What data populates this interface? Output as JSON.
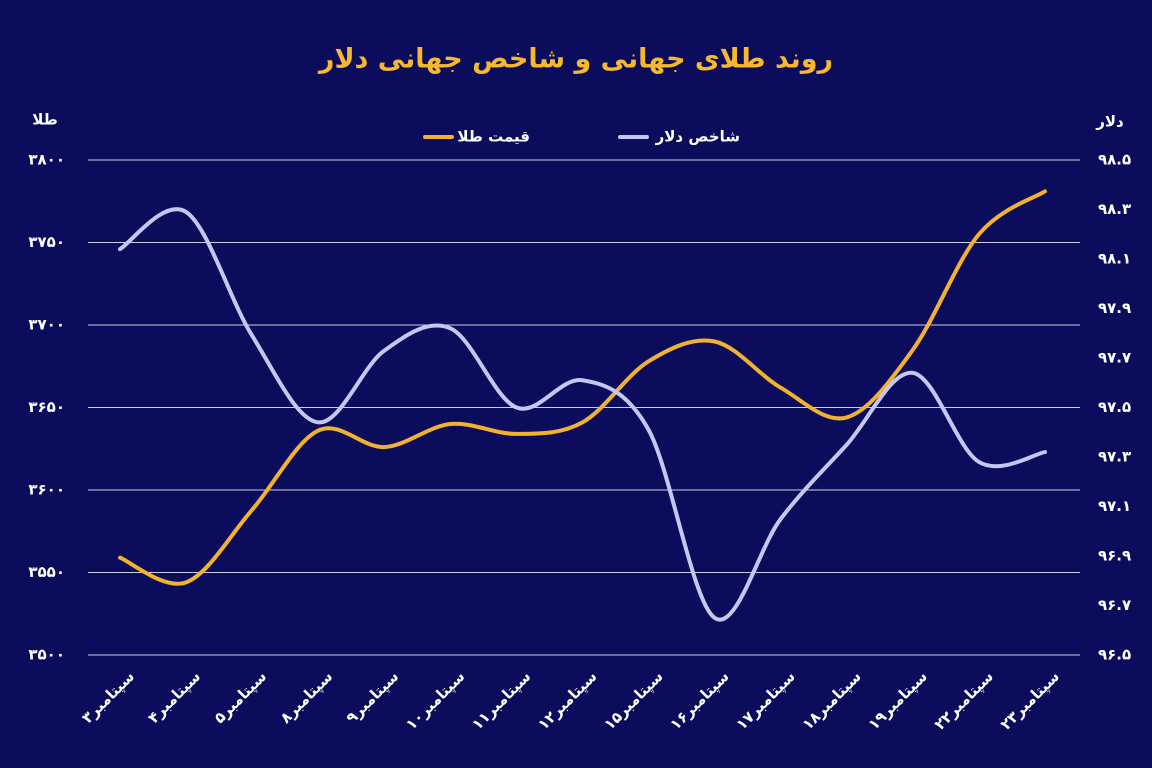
{
  "chart_data": {
    "type": "line",
    "title": "روند طلای جهانی و شاخص جهانی دلار",
    "ylabel": "طلا",
    "y2label": "دلار",
    "categories": [
      "۳سپتامبر",
      "۴سپتامبر",
      "۵سپتامبر",
      "۸سپتامبر",
      "۹سپتامبر",
      "۱۰سپتامبر",
      "۱۱سپتامبر",
      "۱۲سپتامبر",
      "۱۵سپتامبر",
      "۱۶سپتامبر",
      "۱۷سپتامبر",
      "۱۸سپتامبر",
      "۱۹سپتامبر",
      "۲۲سپتامبر",
      "۲۳سپتامبر"
    ],
    "series": [
      {
        "name": "قیمت طلا",
        "color": "#f2b230",
        "values": [
          3559,
          3544,
          3588,
          3636,
          3626,
          3640,
          3634,
          3641,
          3678,
          3690,
          3662,
          3644,
          3685,
          3755,
          3781
        ]
      },
      {
        "name": "شاخص دلار",
        "color": "#c4c8f0",
        "axis": "y2",
        "values": [
          98.14,
          98.29,
          97.79,
          97.44,
          97.73,
          97.82,
          97.5,
          97.61,
          97.41,
          96.65,
          97.05,
          97.35,
          97.64,
          97.28,
          97.32
        ]
      }
    ],
    "ylim": [
      3500,
      3800
    ],
    "yticks": [
      {
        "value": 3500,
        "label": "۳۵۰۰"
      },
      {
        "value": 3550,
        "label": "۳۵۵۰"
      },
      {
        "value": 3600,
        "label": "۳۶۰۰"
      },
      {
        "value": 3650,
        "label": "۳۶۵۰"
      },
      {
        "value": 3700,
        "label": "۳۷۰۰"
      },
      {
        "value": 3750,
        "label": "۳۷۵۰"
      },
      {
        "value": 3800,
        "label": "۳۸۰۰"
      }
    ],
    "y2lim": [
      96.5,
      98.5
    ],
    "y2ticks": [
      {
        "value": 96.5,
        "label": "۹۶.۵"
      },
      {
        "value": 96.7,
        "label": "۹۶.۷"
      },
      {
        "value": 96.9,
        "label": "۹۶.۹"
      },
      {
        "value": 97.1,
        "label": "۹۷.۱"
      },
      {
        "value": 97.3,
        "label": "۹۷.۳"
      },
      {
        "value": 97.5,
        "label": "۹۷.۵"
      },
      {
        "value": 97.7,
        "label": "۹۷.۷"
      },
      {
        "value": 97.9,
        "label": "۹۷.۹"
      },
      {
        "value": 98.1,
        "label": "۹۸.۱"
      },
      {
        "value": 98.3,
        "label": "۹۸.۳"
      },
      {
        "value": 98.5,
        "label": "۹۸.۵"
      }
    ],
    "grid": true
  }
}
